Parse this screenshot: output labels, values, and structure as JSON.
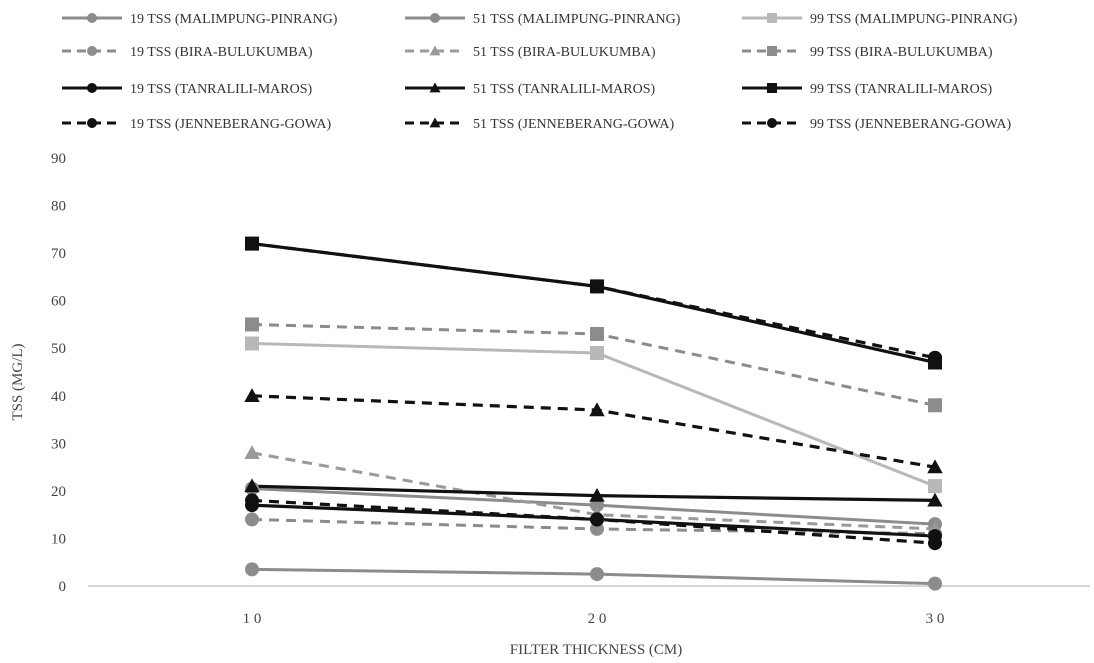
{
  "chart_data": {
    "type": "line",
    "xlabel": "FILTER THICKNESS (CM)",
    "ylabel": "TSS (MG/L)",
    "ylim": [
      0,
      90
    ],
    "yticks": [
      0,
      10,
      20,
      30,
      40,
      50,
      60,
      70,
      80,
      90
    ],
    "x": [
      10,
      20,
      30
    ],
    "x_tick_labels": [
      "1 0",
      "2 0",
      "3 0"
    ],
    "grid": false,
    "legend_position": "top",
    "series": [
      {
        "name": "19 TSS (MALIMPUNG-PINRANG)",
        "values": [
          3.5,
          2.5,
          0.5
        ],
        "color": "#8c8c8c",
        "dash": "solid",
        "marker": "circle"
      },
      {
        "name": "51 TSS (MALIMPUNG-PINRANG)",
        "values": [
          20.5,
          17,
          13
        ],
        "color": "#8c8c8c",
        "dash": "solid",
        "marker": "circle"
      },
      {
        "name": "99 TSS (MALIMPUNG-PINRANG)",
        "values": [
          51,
          49,
          21
        ],
        "color": "#b8b8b8",
        "dash": "solid",
        "marker": "square"
      },
      {
        "name": "19 TSS (BIRA-BULUKUMBA)",
        "values": [
          14,
          12,
          11
        ],
        "color": "#8c8c8c",
        "dash": "dashed",
        "marker": "circle"
      },
      {
        "name": "51 TSS (BIRA-BULUKUMBA)",
        "values": [
          28,
          15,
          12
        ],
        "color": "#9a9a9a",
        "dash": "dashed",
        "marker": "triangle"
      },
      {
        "name": "99 TSS (BIRA-BULUKUMBA)",
        "values": [
          55,
          53,
          38
        ],
        "color": "#8c8c8c",
        "dash": "dashed",
        "marker": "square"
      },
      {
        "name": "19 TSS (TANRALILI-MAROS)",
        "values": [
          17,
          14,
          10.5
        ],
        "color": "#111111",
        "dash": "solid",
        "marker": "circle"
      },
      {
        "name": "51 TSS (TANRALILI-MAROS)",
        "values": [
          21,
          19,
          18
        ],
        "color": "#111111",
        "dash": "solid",
        "marker": "triangle"
      },
      {
        "name": "99 TSS (TANRALILI-MAROS)",
        "values": [
          72,
          63,
          47
        ],
        "color": "#111111",
        "dash": "solid",
        "marker": "square"
      },
      {
        "name": "19 TSS (JENNEBERANG-GOWA)",
        "values": [
          18,
          14,
          9
        ],
        "color": "#111111",
        "dash": "dashed",
        "marker": "circle"
      },
      {
        "name": "51 TSS (JENNEBERANG-GOWA)",
        "values": [
          40,
          37,
          25
        ],
        "color": "#111111",
        "dash": "dashed",
        "marker": "triangle"
      },
      {
        "name": "99 TSS (JENNEBERANG-GOWA)",
        "values": [
          72,
          63,
          48
        ],
        "color": "#111111",
        "dash": "dashed",
        "marker": "circle"
      }
    ]
  }
}
